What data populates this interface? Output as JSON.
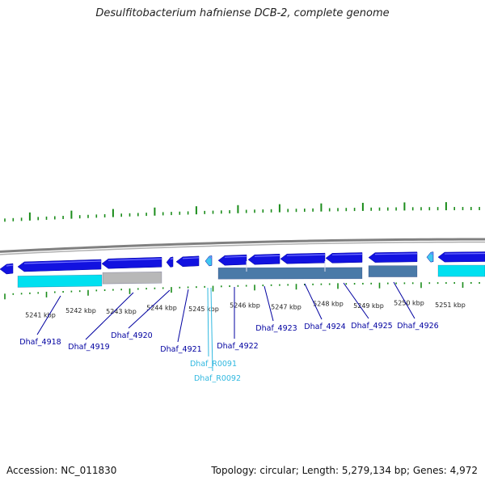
{
  "title": "Desulfitobacterium hafniense DCB-2, complete genome",
  "footer": {
    "accession": "Accession: NC_011830",
    "summary": "Topology: circular; Length: 5,279,134 bp; Genes: 4,972"
  },
  "colors": {
    "forward_gene": "#1212e0",
    "cds_light": "#00e0f0",
    "cds_gray": "#b8b8b8",
    "cds_steel": "#4a7aa8",
    "rna": "#40c8f0",
    "label_gene": "#0000a0",
    "label_rna": "#30b8e0",
    "tick": "#1a8c1a",
    "backbone": "#808080"
  },
  "kbp_ticks": [
    "5241 kbp",
    "5242 kbp",
    "5243 kbp",
    "5244 kbp",
    "5245 kbp",
    "5246 kbp",
    "5247 kbp",
    "5248 kbp",
    "5249 kbp",
    "5250 kbp",
    "5251 kbp"
  ],
  "gene_labels": [
    {
      "text": "Dhaf_4918",
      "kind": "gene"
    },
    {
      "text": "Dhaf_4919",
      "kind": "gene"
    },
    {
      "text": "Dhaf_4920",
      "kind": "gene"
    },
    {
      "text": "Dhaf_4921",
      "kind": "gene"
    },
    {
      "text": "Dhaf_R0091",
      "kind": "rna"
    },
    {
      "text": "Dhaf_R0092",
      "kind": "rna"
    },
    {
      "text": "Dhaf_4922",
      "kind": "gene"
    },
    {
      "text": "Dhaf_4923",
      "kind": "gene"
    },
    {
      "text": "Dhaf_4924",
      "kind": "gene"
    },
    {
      "text": "Dhaf_4925",
      "kind": "gene"
    },
    {
      "text": "Dhaf_4926",
      "kind": "gene"
    }
  ]
}
